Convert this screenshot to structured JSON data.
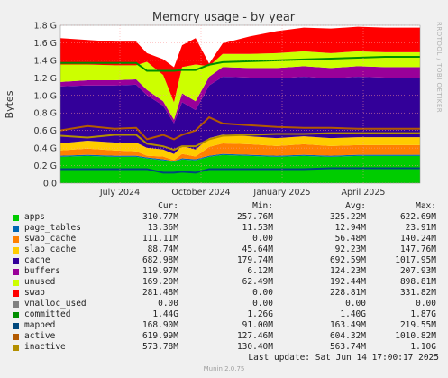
{
  "chart_data": {
    "type": "area",
    "title": "Memory usage - by year",
    "ylabel": "Bytes",
    "side_label": "RRDTOOL / TOBI OETIKER",
    "ylim": [
      0,
      1.8
    ],
    "y_ticks": [
      "0.0",
      "0.2 G",
      "0.4 G",
      "0.6 G",
      "0.8 G",
      "1.0 G",
      "1.2 G",
      "1.4 G",
      "1.6 G",
      "1.8 G"
    ],
    "x_ticks": [
      "July 2024",
      "October 2024",
      "January 2025",
      "April 2025"
    ],
    "x_tick_pos": [
      0.22,
      0.52,
      0.82,
      1.12
    ],
    "x_range_years": [
      0,
      1.33
    ],
    "series_profile": {
      "x": [
        0,
        0.1,
        0.2,
        0.28,
        0.32,
        0.38,
        0.42,
        0.45,
        0.5,
        0.55,
        0.6,
        0.7,
        0.8,
        0.9,
        1.0,
        1.1,
        1.2,
        1.33
      ],
      "apps": [
        0.3,
        0.31,
        0.3,
        0.3,
        0.28,
        0.26,
        0.24,
        0.27,
        0.26,
        0.3,
        0.32,
        0.31,
        0.3,
        0.31,
        0.3,
        0.31,
        0.31,
        0.31
      ],
      "page_tables": [
        0.013,
        0.013,
        0.013,
        0.013,
        0.013,
        0.013,
        0.012,
        0.013,
        0.013,
        0.013,
        0.013,
        0.013,
        0.013,
        0.013,
        0.013,
        0.013,
        0.013,
        0.013
      ],
      "swap_cache": [
        0.06,
        0.07,
        0.06,
        0.05,
        0.02,
        0.03,
        0.01,
        0.05,
        0.03,
        0.1,
        0.12,
        0.12,
        0.11,
        0.12,
        0.11,
        0.11,
        0.11,
        0.11
      ],
      "slab_cache": [
        0.08,
        0.09,
        0.09,
        0.1,
        0.09,
        0.08,
        0.07,
        0.09,
        0.08,
        0.1,
        0.1,
        0.09,
        0.09,
        0.09,
        0.09,
        0.09,
        0.09,
        0.09
      ],
      "cache": [
        0.65,
        0.63,
        0.65,
        0.66,
        0.6,
        0.5,
        0.35,
        0.5,
        0.45,
        0.6,
        0.66,
        0.67,
        0.68,
        0.68,
        0.68,
        0.69,
        0.68,
        0.68
      ],
      "buffers": [
        0.05,
        0.06,
        0.06,
        0.06,
        0.06,
        0.05,
        0.04,
        0.1,
        0.1,
        0.1,
        0.11,
        0.11,
        0.12,
        0.12,
        0.12,
        0.12,
        0.12,
        0.12
      ],
      "unused": [
        0.2,
        0.18,
        0.17,
        0.16,
        0.32,
        0.3,
        0.2,
        0.3,
        0.42,
        0.12,
        0.15,
        0.16,
        0.17,
        0.17,
        0.17,
        0.17,
        0.17,
        0.17
      ],
      "swap": [
        0.3,
        0.28,
        0.27,
        0.27,
        0.1,
        0.18,
        0.4,
        0.25,
        0.3,
        0.03,
        0.12,
        0.2,
        0.25,
        0.27,
        0.28,
        0.28,
        0.28,
        0.28
      ],
      "committed": [
        1.37,
        1.37,
        1.37,
        1.37,
        1.28,
        1.28,
        1.28,
        1.29,
        1.29,
        1.35,
        1.38,
        1.39,
        1.4,
        1.41,
        1.42,
        1.43,
        1.44,
        1.44
      ],
      "mapped": [
        0.16,
        0.16,
        0.16,
        0.16,
        0.16,
        0.12,
        0.12,
        0.13,
        0.12,
        0.16,
        0.16,
        0.16,
        0.16,
        0.16,
        0.17,
        0.17,
        0.17,
        0.17
      ],
      "active": [
        0.6,
        0.65,
        0.62,
        0.63,
        0.5,
        0.55,
        0.5,
        0.55,
        0.6,
        0.75,
        0.68,
        0.66,
        0.64,
        0.63,
        0.63,
        0.62,
        0.62,
        0.62
      ],
      "inactive": [
        0.54,
        0.52,
        0.55,
        0.55,
        0.45,
        0.42,
        0.38,
        0.42,
        0.42,
        0.5,
        0.54,
        0.55,
        0.56,
        0.56,
        0.57,
        0.57,
        0.57,
        0.57
      ]
    },
    "legend_headers": [
      "Cur:",
      "Min:",
      "Avg:",
      "Max:"
    ],
    "series": [
      {
        "name": "apps",
        "color": "#00cc00",
        "cur": "310.77M",
        "min": "257.76M",
        "avg": "325.22M",
        "max": "622.69M"
      },
      {
        "name": "page_tables",
        "color": "#0066b3",
        "cur": "13.36M",
        "min": "11.53M",
        "avg": "12.94M",
        "max": "23.91M"
      },
      {
        "name": "swap_cache",
        "color": "#ff8000",
        "cur": "111.11M",
        "min": "0.00",
        "avg": "56.48M",
        "max": "140.24M"
      },
      {
        "name": "slab_cache",
        "color": "#ffcc00",
        "cur": "88.74M",
        "min": "45.64M",
        "avg": "92.23M",
        "max": "147.76M"
      },
      {
        "name": "cache",
        "color": "#330099",
        "cur": "682.98M",
        "min": "179.74M",
        "avg": "692.59M",
        "max": "1017.95M"
      },
      {
        "name": "buffers",
        "color": "#990099",
        "cur": "119.97M",
        "min": "6.12M",
        "avg": "124.23M",
        "max": "207.93M"
      },
      {
        "name": "unused",
        "color": "#ccff00",
        "cur": "169.20M",
        "min": "62.49M",
        "avg": "192.44M",
        "max": "898.81M"
      },
      {
        "name": "swap",
        "color": "#ff0000",
        "cur": "281.48M",
        "min": "0.00",
        "avg": "228.81M",
        "max": "331.82M"
      },
      {
        "name": "vmalloc_used",
        "color": "#808080",
        "cur": "0.00",
        "min": "0.00",
        "avg": "0.00",
        "max": "0.00"
      },
      {
        "name": "committed",
        "color": "#008f00",
        "cur": "1.44G",
        "min": "1.26G",
        "avg": "1.40G",
        "max": "1.87G"
      },
      {
        "name": "mapped",
        "color": "#00487d",
        "cur": "168.90M",
        "min": "91.00M",
        "avg": "163.49M",
        "max": "219.55M"
      },
      {
        "name": "active",
        "color": "#b35a00",
        "cur": "619.99M",
        "min": "127.46M",
        "avg": "604.32M",
        "max": "1010.82M"
      },
      {
        "name": "inactive",
        "color": "#b38f00",
        "cur": "573.78M",
        "min": "130.40M",
        "avg": "563.74M",
        "max": "1.10G"
      }
    ]
  },
  "footer": {
    "last_update": "Last update: Sat Jun 14 17:00:17 2025",
    "munin": "Munin 2.0.75"
  }
}
